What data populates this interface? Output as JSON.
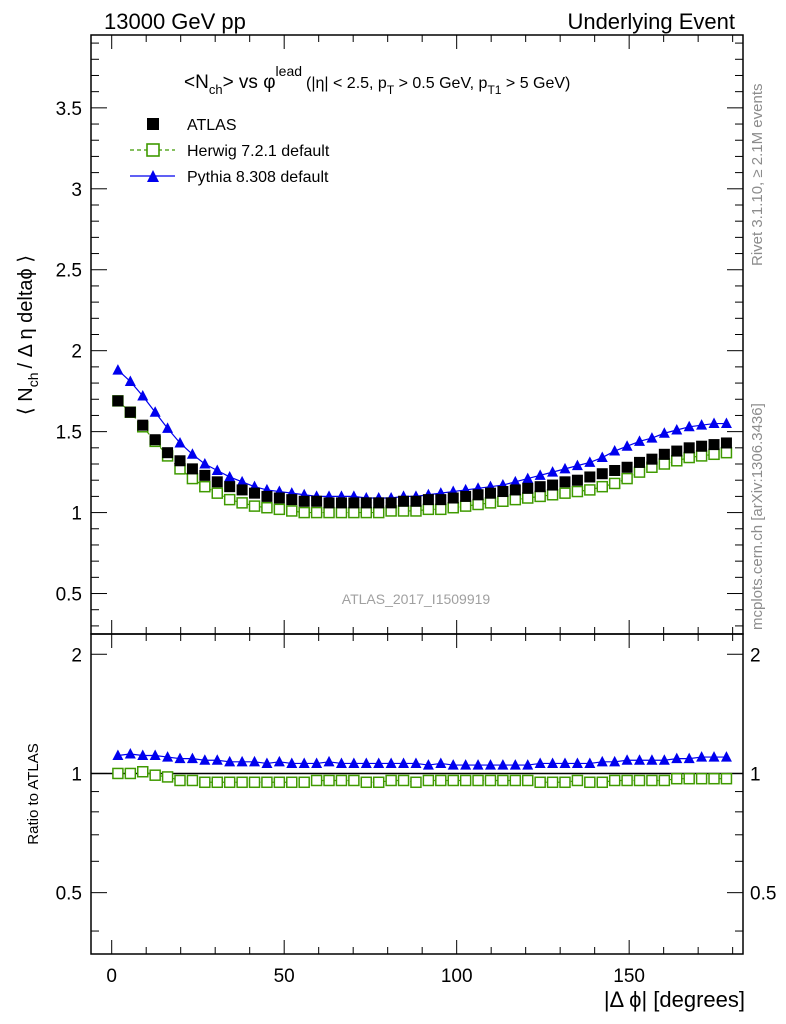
{
  "header": {
    "left": "13000 GeV pp",
    "right": "Underlying Event"
  },
  "plot_title": {
    "main_pre": "<N",
    "main_sub": "ch",
    "main_mid": "> vs φ",
    "main_sup": "lead",
    "cut_a": "(|η| < 2.5, p",
    "cut_a_sub": "T",
    "cut_b": " > 0.5 GeV, p",
    "cut_b_sub": "T1",
    "cut_c": " > 5 GeV)"
  },
  "ylabel_main": {
    "pre": "⟨ N",
    "sub": "ch",
    "post": "/ Δ η deltaϕ ⟩"
  },
  "ylabel_ratio": "Ratio to ATLAS",
  "xlabel": "|Δ ϕ| [degrees]",
  "side_labels": {
    "rivet": "Rivet 3.1.10, ≥ 2.1M events",
    "mcplots": "mcplots.cern.ch [arXiv:1306.3436]"
  },
  "analysis_id": "ATLAS_2017_I1509919",
  "colors": {
    "atlas": "#000000",
    "herwig": "#3f9a00",
    "pythia": "#0000ee"
  },
  "chart_data": [
    {
      "type": "scatter",
      "panel": "main",
      "xlim": [
        -6,
        183
      ],
      "ylim": [
        0.25,
        3.95
      ],
      "yticks_labeled": [
        "0.5",
        "1",
        "1.5",
        "2",
        "2.5",
        "3",
        "3.5"
      ],
      "xticks_labeled": [
        "0",
        "50",
        "100",
        "150"
      ],
      "x": [
        1.8,
        5.4,
        9.0,
        12.6,
        16.2,
        19.8,
        23.4,
        27.0,
        30.6,
        34.2,
        37.8,
        41.4,
        45.0,
        48.6,
        52.2,
        55.8,
        59.4,
        63.0,
        66.6,
        70.2,
        73.8,
        77.4,
        81.0,
        84.6,
        88.2,
        91.8,
        95.4,
        99.0,
        102.6,
        106.2,
        109.8,
        113.4,
        117.0,
        120.6,
        124.2,
        127.8,
        131.4,
        135.0,
        138.6,
        142.2,
        145.8,
        149.4,
        153.0,
        156.6,
        160.2,
        163.8,
        167.4,
        171.0,
        174.6,
        178.2
      ],
      "series": [
        {
          "name": "ATLAS",
          "marker": "filled-square",
          "values": [
            1.69,
            1.62,
            1.54,
            1.45,
            1.37,
            1.32,
            1.27,
            1.23,
            1.19,
            1.16,
            1.14,
            1.12,
            1.1,
            1.09,
            1.08,
            1.07,
            1.07,
            1.06,
            1.06,
            1.06,
            1.06,
            1.06,
            1.06,
            1.07,
            1.07,
            1.08,
            1.08,
            1.09,
            1.1,
            1.11,
            1.12,
            1.13,
            1.14,
            1.15,
            1.16,
            1.17,
            1.19,
            1.2,
            1.22,
            1.24,
            1.26,
            1.28,
            1.31,
            1.33,
            1.36,
            1.38,
            1.4,
            1.41,
            1.42,
            1.43
          ]
        },
        {
          "name": "Herwig 7.2.1 default",
          "marker": "open-square-dashed",
          "values": [
            1.69,
            1.62,
            1.53,
            1.44,
            1.35,
            1.27,
            1.21,
            1.16,
            1.12,
            1.08,
            1.06,
            1.04,
            1.03,
            1.02,
            1.01,
            1.0,
            1.0,
            1.0,
            1.0,
            1.0,
            1.0,
            1.0,
            1.01,
            1.01,
            1.01,
            1.02,
            1.02,
            1.03,
            1.04,
            1.05,
            1.06,
            1.07,
            1.08,
            1.09,
            1.1,
            1.11,
            1.12,
            1.13,
            1.14,
            1.16,
            1.18,
            1.21,
            1.25,
            1.28,
            1.3,
            1.32,
            1.34,
            1.35,
            1.36,
            1.37
          ]
        },
        {
          "name": "Pythia 8.308 default",
          "marker": "filled-triangle",
          "values": [
            1.88,
            1.81,
            1.72,
            1.62,
            1.52,
            1.43,
            1.36,
            1.3,
            1.26,
            1.22,
            1.19,
            1.16,
            1.14,
            1.13,
            1.12,
            1.11,
            1.1,
            1.1,
            1.1,
            1.1,
            1.09,
            1.09,
            1.09,
            1.1,
            1.1,
            1.11,
            1.12,
            1.13,
            1.14,
            1.15,
            1.16,
            1.17,
            1.19,
            1.21,
            1.23,
            1.25,
            1.27,
            1.29,
            1.31,
            1.34,
            1.38,
            1.41,
            1.44,
            1.46,
            1.49,
            1.51,
            1.53,
            1.54,
            1.55,
            1.55
          ]
        }
      ]
    },
    {
      "type": "scatter",
      "panel": "ratio",
      "ylabel": "Ratio to ATLAS",
      "xlabel": "|Δ ϕ| [degrees]",
      "xlim": [
        -6,
        183
      ],
      "ylim": [
        0.35,
        2.25
      ],
      "yticks_labeled": [
        "0.5",
        "1",
        "2"
      ],
      "xticks_labeled": [
        "0",
        "50",
        "100",
        "150"
      ],
      "x": [
        1.8,
        5.4,
        9.0,
        12.6,
        16.2,
        19.8,
        23.4,
        27.0,
        30.6,
        34.2,
        37.8,
        41.4,
        45.0,
        48.6,
        52.2,
        55.8,
        59.4,
        63.0,
        66.6,
        70.2,
        73.8,
        77.4,
        81.0,
        84.6,
        88.2,
        91.8,
        95.4,
        99.0,
        102.6,
        106.2,
        109.8,
        113.4,
        117.0,
        120.6,
        124.2,
        127.8,
        131.4,
        135.0,
        138.6,
        142.2,
        145.8,
        149.4,
        153.0,
        156.6,
        160.2,
        163.8,
        167.4,
        171.0,
        174.6,
        178.2
      ],
      "series": [
        {
          "name": "Herwig 7.2.1 default",
          "marker": "open-square-dashed",
          "values": [
            1.0,
            1.0,
            1.01,
            0.99,
            0.98,
            0.96,
            0.96,
            0.95,
            0.95,
            0.95,
            0.95,
            0.95,
            0.95,
            0.95,
            0.95,
            0.95,
            0.96,
            0.96,
            0.96,
            0.96,
            0.95,
            0.95,
            0.96,
            0.96,
            0.95,
            0.96,
            0.96,
            0.96,
            0.96,
            0.96,
            0.96,
            0.96,
            0.96,
            0.96,
            0.95,
            0.95,
            0.95,
            0.96,
            0.95,
            0.95,
            0.96,
            0.96,
            0.96,
            0.96,
            0.96,
            0.97,
            0.97,
            0.97,
            0.97,
            0.97
          ]
        },
        {
          "name": "Pythia 8.308 default",
          "marker": "filled-triangle",
          "values": [
            1.11,
            1.12,
            1.11,
            1.11,
            1.1,
            1.09,
            1.09,
            1.08,
            1.08,
            1.07,
            1.07,
            1.07,
            1.06,
            1.07,
            1.06,
            1.06,
            1.06,
            1.07,
            1.06,
            1.06,
            1.06,
            1.06,
            1.06,
            1.06,
            1.06,
            1.05,
            1.06,
            1.05,
            1.05,
            1.05,
            1.05,
            1.05,
            1.05,
            1.05,
            1.06,
            1.06,
            1.06,
            1.06,
            1.06,
            1.07,
            1.07,
            1.08,
            1.08,
            1.08,
            1.08,
            1.09,
            1.09,
            1.1,
            1.1,
            1.1
          ]
        }
      ]
    }
  ]
}
